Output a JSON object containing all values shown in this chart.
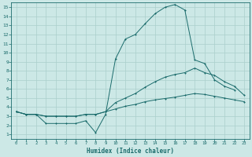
{
  "xlabel": "Humidex (Indice chaleur)",
  "xlim": [
    -0.5,
    23.5
  ],
  "ylim": [
    0.5,
    15.5
  ],
  "xticks": [
    0,
    1,
    2,
    3,
    4,
    5,
    6,
    7,
    8,
    9,
    10,
    11,
    12,
    13,
    14,
    15,
    16,
    17,
    18,
    19,
    20,
    21,
    22,
    23
  ],
  "yticks": [
    1,
    2,
    3,
    4,
    5,
    6,
    7,
    8,
    9,
    10,
    11,
    12,
    13,
    14,
    15
  ],
  "background_color": "#cce8e6",
  "line_color": "#1a6b6b",
  "grid_color": "#aacfcc",
  "line1_y": [
    3.5,
    3.2,
    3.2,
    2.2,
    2.2,
    2.2,
    2.2,
    2.5,
    1.2,
    3.2,
    9.3,
    11.5,
    12.0,
    13.2,
    14.3,
    15.0,
    15.3,
    14.7,
    9.2,
    8.8,
    7.0,
    6.3,
    5.9,
    null
  ],
  "line2_y": [
    3.5,
    3.2,
    3.2,
    3.0,
    3.0,
    3.0,
    3.0,
    3.2,
    3.2,
    3.5,
    4.5,
    5.0,
    5.5,
    6.2,
    6.8,
    7.3,
    7.6,
    7.8,
    8.3,
    7.8,
    7.5,
    6.8,
    6.3,
    5.3
  ],
  "line3_y": [
    3.5,
    3.2,
    3.2,
    3.0,
    3.0,
    3.0,
    3.0,
    3.2,
    3.2,
    3.5,
    3.8,
    4.1,
    4.3,
    4.6,
    4.8,
    4.95,
    5.1,
    5.3,
    5.5,
    5.4,
    5.2,
    5.0,
    4.8,
    4.6
  ]
}
